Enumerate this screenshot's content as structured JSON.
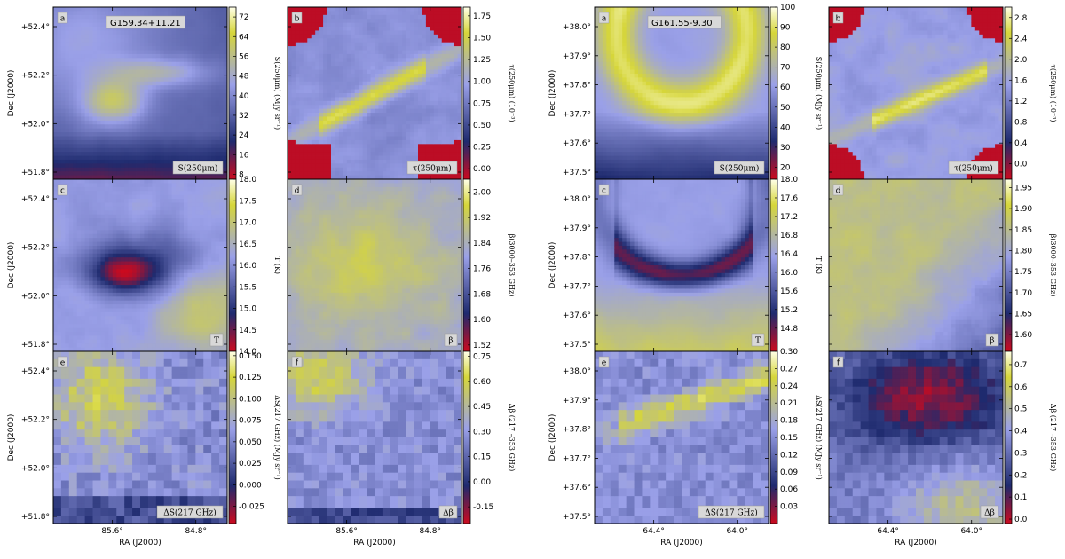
{
  "chart_data": {
    "type": "heatmap",
    "colormap": [
      "#cc0a1e",
      "#1e2a6e",
      "#9aa0e8",
      "#d6d63a",
      "#ffffe8"
    ],
    "fields": [
      {
        "name": "G159.34+11.21",
        "xlabel": "RA (J2000)",
        "ylabel": "Dec (J2000)",
        "x_ticks": [
          "85.6°",
          "84.8°"
        ],
        "y_ticks": [
          "+51.8°",
          "+52.0°",
          "+52.2°",
          "+52.4°"
        ],
        "rows": [
          {
            "ylabel": "Dec (J2000)",
            "panels": [
              {
                "letter": "a",
                "map_label": "S(250μm)",
                "cb_label": "S(250μm) (MJy sr⁻¹)",
                "cb_ticks": [
                  "8",
                  "16",
                  "24",
                  "32",
                  "40",
                  "48",
                  "56",
                  "64",
                  "72"
                ],
                "cb_range": [
                  6,
                  76
                ]
              },
              {
                "letter": "b",
                "map_label": "τ(250μm)",
                "cb_label": "τ(250μm) (10⁻³)",
                "cb_ticks": [
                  "0.00",
                  "0.25",
                  "0.50",
                  "0.75",
                  "1.00",
                  "1.25",
                  "1.50",
                  "1.75"
                ],
                "cb_range": [
                  -0.12,
                  1.85
                ]
              }
            ]
          },
          {
            "ylabel": "Dec (J2000)",
            "panels": [
              {
                "letter": "c",
                "map_label": "T",
                "cb_label": "T (K)",
                "cb_ticks": [
                  "14.0",
                  "14.5",
                  "15.0",
                  "15.5",
                  "16.0",
                  "16.5",
                  "17.0",
                  "17.5",
                  "18.0"
                ],
                "cb_range": [
                  14.0,
                  18.0
                ]
              },
              {
                "letter": "d",
                "map_label": "β",
                "cb_label": "β(3000–353 GHz)",
                "cb_ticks": [
                  "1.52",
                  "1.60",
                  "1.68",
                  "1.76",
                  "1.84",
                  "1.92",
                  "2.00"
                ],
                "cb_range": [
                  1.5,
                  2.04
                ]
              }
            ]
          },
          {
            "ylabel": "Dec (J2000)",
            "panels": [
              {
                "letter": "e",
                "map_label": "ΔS(217 GHz)",
                "cb_label": "ΔS(217 GHz) (MJy sr⁻¹)",
                "cb_ticks": [
                  "-0.025",
                  "0.000",
                  "0.025",
                  "0.050",
                  "0.075",
                  "0.100",
                  "0.125",
                  "0.150"
                ],
                "cb_range": [
                  -0.045,
                  0.155
                ]
              },
              {
                "letter": "f",
                "map_label": "Δβ",
                "cb_label": "Δβ (217 –353 GHz)",
                "cb_ticks": [
                  "-0.15",
                  "0.00",
                  "0.15",
                  "0.30",
                  "0.45",
                  "0.60",
                  "0.75"
                ],
                "cb_range": [
                  -0.25,
                  0.78
                ]
              }
            ]
          }
        ]
      },
      {
        "name": "G161.55-9.30",
        "xlabel": "RA (J2000)",
        "ylabel": "Dec (J2000)",
        "x_ticks": [
          "64.4°",
          "64.0°"
        ],
        "y_ticks": [
          "+37.5°",
          "+37.6°",
          "+37.7°",
          "+37.8°",
          "+37.9°",
          "+38.0°"
        ],
        "rows": [
          {
            "ylabel": "Dec (J2000)",
            "panels": [
              {
                "letter": "a",
                "map_label": "S(250μm)",
                "cb_label": "S(250μm) (MJy sr⁻¹)",
                "cb_ticks": [
                  "20",
                  "30",
                  "40",
                  "50",
                  "60",
                  "70",
                  "80",
                  "90",
                  "100"
                ],
                "cb_range": [
                  14,
                  100
                ]
              },
              {
                "letter": "b",
                "map_label": "τ(250μm)",
                "cb_label": "τ(250μm) (10⁻³)",
                "cb_ticks": [
                  "0.0",
                  "0.4",
                  "0.8",
                  "1.2",
                  "1.6",
                  "2.0",
                  "2.4",
                  "2.8"
                ],
                "cb_range": [
                  -0.3,
                  3.0
                ]
              }
            ]
          },
          {
            "ylabel": "Dec (J2000)",
            "panels": [
              {
                "letter": "c",
                "map_label": "T",
                "cb_label": "T (K)",
                "cb_ticks": [
                  "14.8",
                  "15.2",
                  "15.6",
                  "16.0",
                  "16.4",
                  "16.8",
                  "17.2",
                  "17.6",
                  "18.0"
                ],
                "cb_range": [
                  14.3,
                  18.0
                ]
              },
              {
                "letter": "d",
                "map_label": "β",
                "cb_label": "β(3000–353 GHz)",
                "cb_ticks": [
                  "1.60",
                  "1.65",
                  "1.70",
                  "1.75",
                  "1.80",
                  "1.85",
                  "1.90",
                  "1.95"
                ],
                "cb_range": [
                  1.56,
                  1.97
                ]
              }
            ]
          },
          {
            "ylabel": "Dec (J2000)",
            "panels": [
              {
                "letter": "e",
                "map_label": "ΔS(217 GHz)",
                "cb_label": "ΔS(217 GHz) (MJy sr⁻¹)",
                "cb_ticks": [
                  "0.03",
                  "0.06",
                  "0.09",
                  "0.12",
                  "0.15",
                  "0.18",
                  "0.21",
                  "0.24",
                  "0.27",
                  "0.30"
                ],
                "cb_range": [
                  0.0,
                  0.3
                ]
              },
              {
                "letter": "f",
                "map_label": "Δβ",
                "cb_label": "Δβ (217 –353 GHz)",
                "cb_ticks": [
                  "0.0",
                  "0.1",
                  "0.2",
                  "0.3",
                  "0.4",
                  "0.5",
                  "0.6",
                  "0.7"
                ],
                "cb_range": [
                  -0.02,
                  0.76
                ]
              }
            ]
          }
        ]
      }
    ]
  }
}
